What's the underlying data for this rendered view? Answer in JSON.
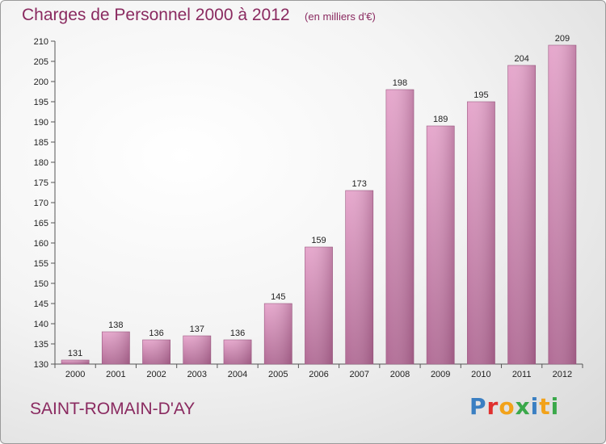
{
  "header": {
    "title": "Charges de Personnel 2000 à 2012",
    "unit": "(en milliers d'€)"
  },
  "footer": {
    "town": "SAINT-ROMAIN-D'AY",
    "brand_letters": [
      "P",
      "r",
      "o",
      "x",
      "i",
      "t",
      "i"
    ],
    "brand_colors": [
      "#3a7fc2",
      "#e0302e",
      "#f2a21a",
      "#3aa84a",
      "#3a7fc2",
      "#f2a21a",
      "#3aa84a"
    ]
  },
  "chart_data": {
    "type": "bar",
    "categories": [
      "2000",
      "2001",
      "2002",
      "2003",
      "2004",
      "2005",
      "2006",
      "2007",
      "2008",
      "2009",
      "2010",
      "2011",
      "2012"
    ],
    "values": [
      131,
      138,
      136,
      137,
      136,
      145,
      159,
      173,
      198,
      189,
      195,
      204,
      209
    ],
    "data_labels": [
      "131",
      "138",
      "136",
      "137",
      "136",
      "145",
      "159",
      "173",
      "198",
      "189",
      "195",
      "204",
      "209"
    ],
    "title": "Charges de Personnel 2000 à 2012",
    "ylim": [
      130,
      210
    ],
    "ytick_labels": [
      "130",
      "135",
      "140",
      "145",
      "150",
      "155",
      "160",
      "165",
      "170",
      "175",
      "180",
      "185",
      "190",
      "195",
      "200",
      "205",
      "210"
    ],
    "grid": false,
    "bar_color": "#d78fb8"
  }
}
